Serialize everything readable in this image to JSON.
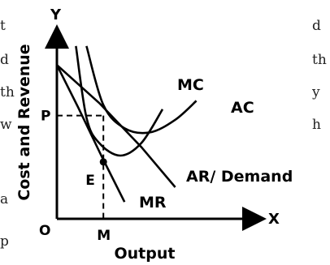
{
  "background_text": {
    "left_fragments": [
      "t",
      "d",
      "th",
      "w",
      "a",
      "p"
    ],
    "right_fragments": [
      "d",
      "th",
      "y",
      "h"
    ]
  },
  "chart_data": {
    "type": "line",
    "title": "",
    "xlabel": "Output",
    "ylabel": "Cost and Revenue",
    "axis_letters": {
      "x": "X",
      "y": "Y",
      "origin": "O"
    },
    "x_range": [
      0,
      10
    ],
    "y_range": [
      0,
      10
    ],
    "grid": false,
    "series": [
      {
        "name": "MC",
        "x": [
          0.9,
          1.4,
          2.0,
          3.0,
          4.0,
          5.0
        ],
        "y": [
          8.2,
          4.8,
          3.6,
          3.0,
          3.6,
          5.2
        ]
      },
      {
        "name": "AC",
        "x": [
          1.4,
          2.2,
          3.2,
          4.4,
          5.6,
          6.6
        ],
        "y": [
          8.2,
          5.4,
          4.3,
          4.1,
          4.7,
          5.6
        ]
      },
      {
        "name": "AR/ Demand",
        "x": [
          0.0,
          2.0,
          4.0,
          5.6
        ],
        "y": [
          7.3,
          5.5,
          3.4,
          1.5
        ]
      },
      {
        "name": "MR",
        "x": [
          0.0,
          1.0,
          2.1,
          3.2
        ],
        "y": [
          7.3,
          5.3,
          3.0,
          0.8
        ]
      }
    ],
    "points": [
      {
        "label": "E",
        "x": 2.2,
        "y": 2.7
      }
    ],
    "reference_lines": [
      {
        "label": "P",
        "axis": "y",
        "value": 4.9
      },
      {
        "label": "M",
        "axis": "x",
        "value": 2.2
      }
    ],
    "colors": {
      "curves": "#000000",
      "axis_text": "#000000",
      "ylabel_color": "#000000"
    }
  }
}
